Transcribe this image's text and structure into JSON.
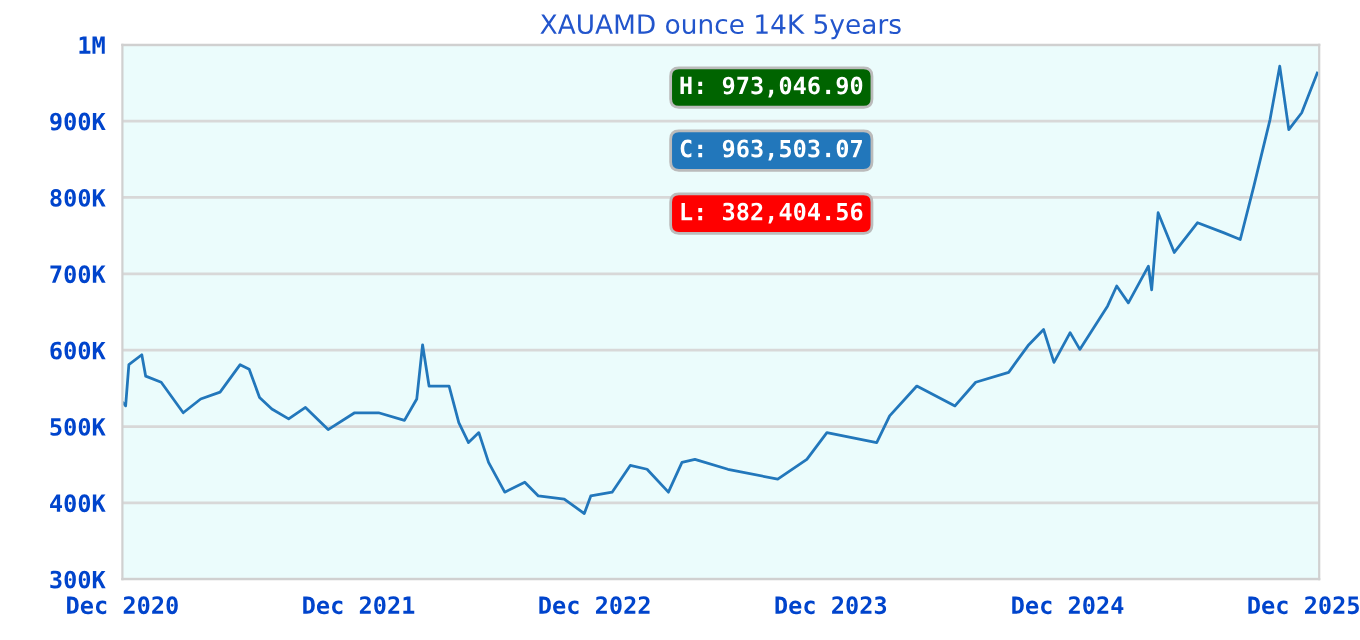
{
  "chart_data": {
    "type": "line",
    "title": "XAUAMD ounce 14K 5years",
    "annotations": [
      "H: 973,046.90",
      "C: 963,503.07",
      "L: 382,404.56"
    ],
    "x": [
      "2020-12-02",
      "2020-12-06",
      "2020-12-11",
      "2020-12-31",
      "2021-01-06",
      "2021-01-30",
      "2021-03-05",
      "2021-04-01",
      "2021-05-01",
      "2021-06-01",
      "2021-06-15",
      "2021-07-01",
      "2021-07-20",
      "2021-08-15",
      "2021-09-10",
      "2021-10-15",
      "2021-11-25",
      "2022-01-01",
      "2022-02-10",
      "2022-03-01",
      "2022-03-10",
      "2022-03-20",
      "2022-04-20",
      "2022-05-05",
      "2022-05-20",
      "2022-06-05",
      "2022-06-20",
      "2022-07-15",
      "2022-08-15",
      "2022-09-05",
      "2022-10-15",
      "2022-11-15",
      "2022-11-25",
      "2022-12-28",
      "2023-01-25",
      "2023-02-20",
      "2023-03-25",
      "2023-04-15",
      "2023-05-05",
      "2023-06-25",
      "2023-09-10",
      "2023-10-25",
      "2023-11-25",
      "2024-02-10",
      "2024-03-01",
      "2024-04-12",
      "2024-06-10",
      "2024-07-12",
      "2024-09-01",
      "2024-10-01",
      "2024-10-25",
      "2024-11-10",
      "2024-12-05",
      "2024-12-20",
      "2025-02-01",
      "2025-02-15",
      "2025-03-05",
      "2025-04-05",
      "2025-04-10",
      "2025-04-20",
      "2025-05-15",
      "2025-06-20",
      "2025-07-30",
      "2025-08-25",
      "2025-09-15",
      "2025-10-10",
      "2025-10-25",
      "2025-11-08",
      "2025-11-28",
      "2025-12-22"
    ],
    "series": [
      {
        "color": "#2277bb",
        "values": [
          531000,
          527000,
          581000,
          594000,
          566000,
          558000,
          518000,
          536000,
          545000,
          581000,
          575000,
          538000,
          523000,
          510000,
          525000,
          496000,
          518000,
          518000,
          508000,
          536000,
          607000,
          553000,
          553000,
          505000,
          479000,
          492000,
          453000,
          414000,
          427000,
          409000,
          405000,
          386000,
          409000,
          414000,
          449000,
          444000,
          414000,
          453000,
          457000,
          444000,
          431000,
          457000,
          492000,
          479000,
          514000,
          553000,
          527000,
          558000,
          571000,
          606000,
          627000,
          584000,
          623000,
          601000,
          658000,
          684000,
          662000,
          710000,
          679000,
          780000,
          728000,
          767000,
          754000,
          745000,
          815000,
          902000,
          972000,
          889000,
          911000,
          963000
        ]
      }
    ],
    "xlim": [
      "2020-12-01",
      "2025-12-25"
    ],
    "xticks": [
      {
        "value": "2020-12-01",
        "label": "Dec 2020"
      },
      {
        "value": "2021-12-01",
        "label": "Dec 2021"
      },
      {
        "value": "2022-12-01",
        "label": "Dec 2022"
      },
      {
        "value": "2023-12-01",
        "label": "Dec 2023"
      },
      {
        "value": "2024-12-01",
        "label": "Dec 2024"
      },
      {
        "value": "2025-12-01",
        "label": "Dec 2025"
      }
    ],
    "ylim": [
      300000,
      1000000
    ],
    "yticks": [
      {
        "value": 300000,
        "label": "300K"
      },
      {
        "value": 400000,
        "label": "400K"
      },
      {
        "value": 500000,
        "label": "500K"
      },
      {
        "value": 600000,
        "label": "600K"
      },
      {
        "value": 700000,
        "label": "700K"
      },
      {
        "value": 800000,
        "label": "800K"
      },
      {
        "value": 900000,
        "label": "900K"
      },
      {
        "value": 1000000,
        "label": "1M"
      }
    ],
    "grid": "y",
    "legend": false,
    "marker": "none",
    "line_style": "solid"
  }
}
